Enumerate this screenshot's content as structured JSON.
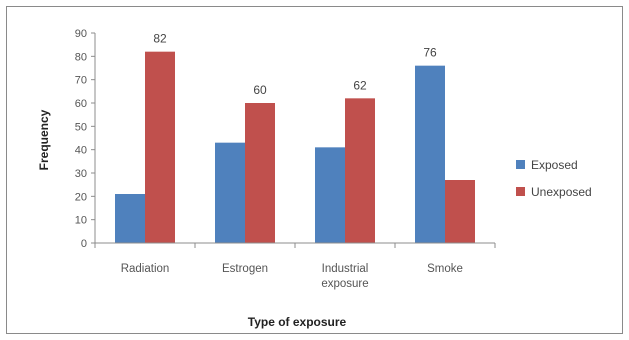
{
  "chart_data": {
    "type": "bar",
    "title": "",
    "xlabel": "Type of exposure",
    "ylabel": "Frequency",
    "ylim": [
      0,
      90
    ],
    "yticks": [
      0,
      10,
      20,
      30,
      40,
      50,
      60,
      70,
      80,
      90
    ],
    "categories": [
      "Radiation",
      "Estrogen",
      "Industrial exposure",
      "Smoke"
    ],
    "category_lines": [
      [
        "Radiation"
      ],
      [
        "Estrogen"
      ],
      [
        "Industrial",
        "exposure"
      ],
      [
        "Smoke"
      ]
    ],
    "series": [
      {
        "name": "Exposed",
        "color": "#4f81bd",
        "values": [
          21,
          43,
          41,
          76
        ]
      },
      {
        "name": "Unexposed",
        "color": "#c0504d",
        "values": [
          82,
          60,
          62,
          27
        ]
      }
    ],
    "data_labels": [
      {
        "series": 0,
        "index": 3,
        "text": "76"
      },
      {
        "series": 1,
        "index": 0,
        "text": "82"
      },
      {
        "series": 1,
        "index": 1,
        "text": "60"
      },
      {
        "series": 1,
        "index": 2,
        "text": "62"
      }
    ],
    "grid": false,
    "legend_position": "right"
  }
}
